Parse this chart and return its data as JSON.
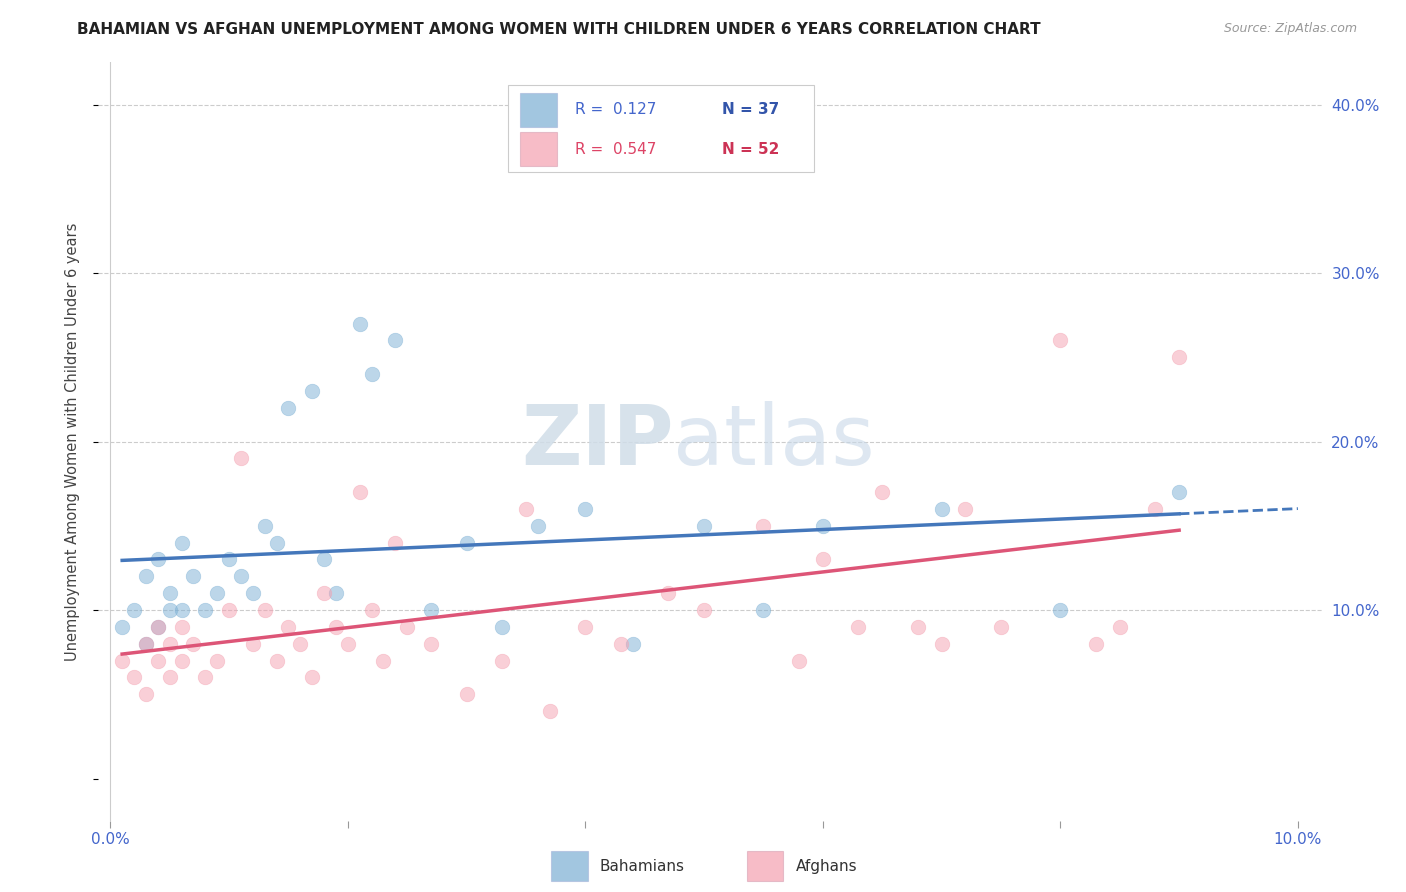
{
  "title": "BAHAMIAN VS AFGHAN UNEMPLOYMENT AMONG WOMEN WITH CHILDREN UNDER 6 YEARS CORRELATION CHART",
  "source": "Source: ZipAtlas.com",
  "ylabel": "Unemployment Among Women with Children Under 6 years",
  "xlim": [
    -0.001,
    0.102
  ],
  "ylim": [
    -0.025,
    0.425
  ],
  "yticks": [
    0.0,
    0.1,
    0.2,
    0.3,
    0.4
  ],
  "ytick_labels": [
    "",
    "10.0%",
    "20.0%",
    "30.0%",
    "40.0%"
  ],
  "xticks": [
    0.0,
    0.02,
    0.04,
    0.06,
    0.08,
    0.1
  ],
  "xtick_labels": [
    "0.0%",
    "",
    "",
    "",
    "",
    "10.0%"
  ],
  "legend_R1": "R =  0.127",
  "legend_N1": "N = 37",
  "legend_R2": "R =  0.547",
  "legend_N2": "N = 52",
  "legend_label1": "Bahamians",
  "legend_label2": "Afghans",
  "blue_color": "#7bafd4",
  "pink_color": "#f4a0b0",
  "blue_line_color": "#4477bb",
  "pink_line_color": "#dd5577",
  "watermark_zip": "ZIP",
  "watermark_atlas": "atlas",
  "bahamian_x": [
    0.001,
    0.002,
    0.003,
    0.003,
    0.004,
    0.004,
    0.005,
    0.005,
    0.006,
    0.006,
    0.007,
    0.008,
    0.009,
    0.01,
    0.011,
    0.012,
    0.013,
    0.014,
    0.015,
    0.017,
    0.018,
    0.019,
    0.021,
    0.022,
    0.024,
    0.027,
    0.03,
    0.033,
    0.036,
    0.04,
    0.044,
    0.05,
    0.055,
    0.06,
    0.07,
    0.08,
    0.09
  ],
  "bahamian_y": [
    0.09,
    0.1,
    0.12,
    0.08,
    0.13,
    0.09,
    0.11,
    0.1,
    0.14,
    0.1,
    0.12,
    0.1,
    0.11,
    0.13,
    0.12,
    0.11,
    0.15,
    0.14,
    0.22,
    0.23,
    0.13,
    0.11,
    0.27,
    0.24,
    0.26,
    0.1,
    0.14,
    0.09,
    0.15,
    0.16,
    0.08,
    0.15,
    0.1,
    0.15,
    0.16,
    0.1,
    0.17
  ],
  "afghan_x": [
    0.001,
    0.002,
    0.003,
    0.003,
    0.004,
    0.004,
    0.005,
    0.005,
    0.006,
    0.006,
    0.007,
    0.008,
    0.009,
    0.01,
    0.011,
    0.012,
    0.013,
    0.014,
    0.015,
    0.016,
    0.017,
    0.018,
    0.019,
    0.02,
    0.021,
    0.022,
    0.023,
    0.024,
    0.025,
    0.027,
    0.03,
    0.033,
    0.035,
    0.037,
    0.04,
    0.043,
    0.047,
    0.05,
    0.055,
    0.058,
    0.06,
    0.063,
    0.065,
    0.068,
    0.07,
    0.072,
    0.075,
    0.08,
    0.083,
    0.085,
    0.088,
    0.09
  ],
  "afghan_y": [
    0.07,
    0.06,
    0.08,
    0.05,
    0.09,
    0.07,
    0.08,
    0.06,
    0.09,
    0.07,
    0.08,
    0.06,
    0.07,
    0.1,
    0.19,
    0.08,
    0.1,
    0.07,
    0.09,
    0.08,
    0.06,
    0.11,
    0.09,
    0.08,
    0.17,
    0.1,
    0.07,
    0.14,
    0.09,
    0.08,
    0.05,
    0.07,
    0.16,
    0.04,
    0.09,
    0.08,
    0.11,
    0.1,
    0.15,
    0.07,
    0.13,
    0.09,
    0.17,
    0.09,
    0.08,
    0.16,
    0.09,
    0.26,
    0.08,
    0.09,
    0.16,
    0.25
  ]
}
